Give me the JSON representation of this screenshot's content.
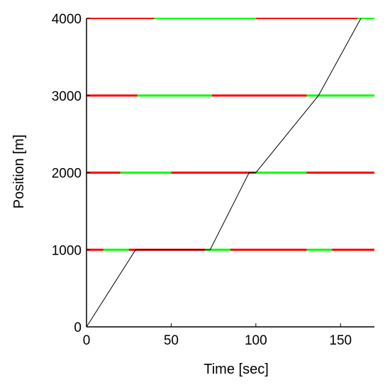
{
  "chart_data": {
    "type": "line",
    "title": "",
    "xlabel": "Time [sec]",
    "ylabel": "Position [m]",
    "xlim": [
      0,
      170
    ],
    "ylim": [
      0,
      4000
    ],
    "xticks": [
      0,
      50,
      100,
      150
    ],
    "yticks": [
      0,
      1000,
      2000,
      3000,
      4000
    ],
    "grid": false,
    "legend": "none",
    "colors": {
      "red": "#ff0000",
      "green": "#00ff00",
      "trajectory": "#000000",
      "axes": "#000000"
    },
    "signals": [
      {
        "position": 1000,
        "phases": [
          {
            "start": 0,
            "end": 10,
            "state": "red"
          },
          {
            "start": 10,
            "end": 25,
            "state": "green"
          },
          {
            "start": 25,
            "end": 70,
            "state": "red"
          },
          {
            "start": 70,
            "end": 85,
            "state": "green"
          },
          {
            "start": 85,
            "end": 130,
            "state": "red"
          },
          {
            "start": 130,
            "end": 145,
            "state": "green"
          },
          {
            "start": 145,
            "end": 170,
            "state": "red"
          }
        ]
      },
      {
        "position": 2000,
        "phases": [
          {
            "start": 0,
            "end": 20,
            "state": "red"
          },
          {
            "start": 20,
            "end": 50,
            "state": "green"
          },
          {
            "start": 50,
            "end": 100,
            "state": "red"
          },
          {
            "start": 100,
            "end": 130,
            "state": "green"
          },
          {
            "start": 130,
            "end": 170,
            "state": "red"
          }
        ]
      },
      {
        "position": 3000,
        "phases": [
          {
            "start": 0,
            "end": 30,
            "state": "red"
          },
          {
            "start": 30,
            "end": 74,
            "state": "green"
          },
          {
            "start": 74,
            "end": 130,
            "state": "red"
          },
          {
            "start": 130,
            "end": 170,
            "state": "green"
          }
        ]
      },
      {
        "position": 4000,
        "phases": [
          {
            "start": 0,
            "end": 40,
            "state": "red"
          },
          {
            "start": 40,
            "end": 100,
            "state": "green"
          },
          {
            "start": 100,
            "end": 160,
            "state": "red"
          },
          {
            "start": 160,
            "end": 170,
            "state": "green"
          }
        ]
      }
    ],
    "trajectory": {
      "x": [
        0,
        29,
        71,
        73,
        96,
        100,
        137,
        162
      ],
      "y": [
        0,
        1000,
        1000,
        1000,
        2000,
        2000,
        3000,
        4000
      ]
    }
  }
}
